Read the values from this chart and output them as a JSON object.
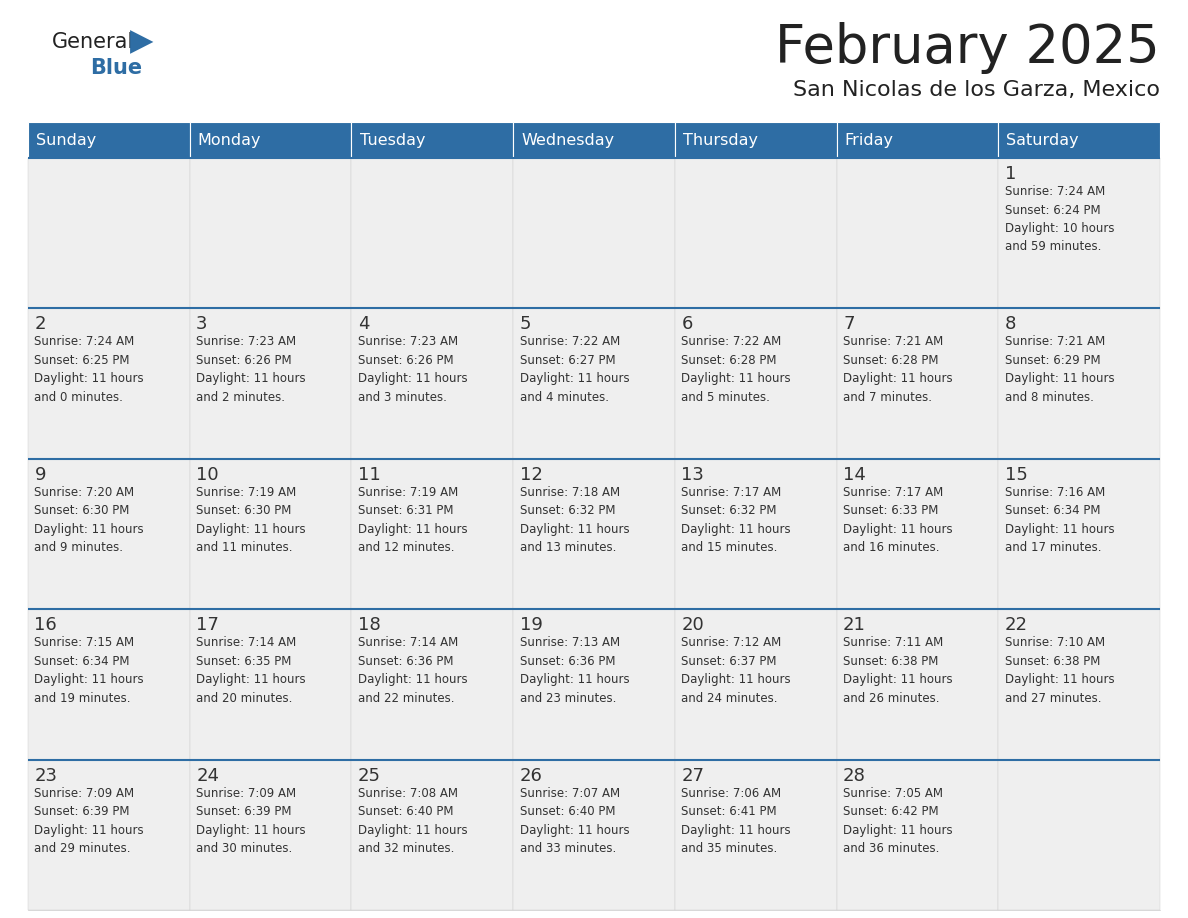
{
  "title": "February 2025",
  "subtitle": "San Nicolas de los Garza, Mexico",
  "days_of_week": [
    "Sunday",
    "Monday",
    "Tuesday",
    "Wednesday",
    "Thursday",
    "Friday",
    "Saturday"
  ],
  "header_bg": "#2E6DA4",
  "header_text": "#FFFFFF",
  "cell_bg": "#EFEFEF",
  "row_separator_color": "#2E6DA4",
  "day_number_color": "#333333",
  "text_color": "#333333",
  "grid_color": "#CCCCCC",
  "title_color": "#222222",
  "logo_general_color": "#222222",
  "logo_blue_color": "#2E6DA4",
  "calendar_data": [
    [
      {
        "day": null,
        "info": ""
      },
      {
        "day": null,
        "info": ""
      },
      {
        "day": null,
        "info": ""
      },
      {
        "day": null,
        "info": ""
      },
      {
        "day": null,
        "info": ""
      },
      {
        "day": null,
        "info": ""
      },
      {
        "day": 1,
        "info": "Sunrise: 7:24 AM\nSunset: 6:24 PM\nDaylight: 10 hours\nand 59 minutes."
      }
    ],
    [
      {
        "day": 2,
        "info": "Sunrise: 7:24 AM\nSunset: 6:25 PM\nDaylight: 11 hours\nand 0 minutes."
      },
      {
        "day": 3,
        "info": "Sunrise: 7:23 AM\nSunset: 6:26 PM\nDaylight: 11 hours\nand 2 minutes."
      },
      {
        "day": 4,
        "info": "Sunrise: 7:23 AM\nSunset: 6:26 PM\nDaylight: 11 hours\nand 3 minutes."
      },
      {
        "day": 5,
        "info": "Sunrise: 7:22 AM\nSunset: 6:27 PM\nDaylight: 11 hours\nand 4 minutes."
      },
      {
        "day": 6,
        "info": "Sunrise: 7:22 AM\nSunset: 6:28 PM\nDaylight: 11 hours\nand 5 minutes."
      },
      {
        "day": 7,
        "info": "Sunrise: 7:21 AM\nSunset: 6:28 PM\nDaylight: 11 hours\nand 7 minutes."
      },
      {
        "day": 8,
        "info": "Sunrise: 7:21 AM\nSunset: 6:29 PM\nDaylight: 11 hours\nand 8 minutes."
      }
    ],
    [
      {
        "day": 9,
        "info": "Sunrise: 7:20 AM\nSunset: 6:30 PM\nDaylight: 11 hours\nand 9 minutes."
      },
      {
        "day": 10,
        "info": "Sunrise: 7:19 AM\nSunset: 6:30 PM\nDaylight: 11 hours\nand 11 minutes."
      },
      {
        "day": 11,
        "info": "Sunrise: 7:19 AM\nSunset: 6:31 PM\nDaylight: 11 hours\nand 12 minutes."
      },
      {
        "day": 12,
        "info": "Sunrise: 7:18 AM\nSunset: 6:32 PM\nDaylight: 11 hours\nand 13 minutes."
      },
      {
        "day": 13,
        "info": "Sunrise: 7:17 AM\nSunset: 6:32 PM\nDaylight: 11 hours\nand 15 minutes."
      },
      {
        "day": 14,
        "info": "Sunrise: 7:17 AM\nSunset: 6:33 PM\nDaylight: 11 hours\nand 16 minutes."
      },
      {
        "day": 15,
        "info": "Sunrise: 7:16 AM\nSunset: 6:34 PM\nDaylight: 11 hours\nand 17 minutes."
      }
    ],
    [
      {
        "day": 16,
        "info": "Sunrise: 7:15 AM\nSunset: 6:34 PM\nDaylight: 11 hours\nand 19 minutes."
      },
      {
        "day": 17,
        "info": "Sunrise: 7:14 AM\nSunset: 6:35 PM\nDaylight: 11 hours\nand 20 minutes."
      },
      {
        "day": 18,
        "info": "Sunrise: 7:14 AM\nSunset: 6:36 PM\nDaylight: 11 hours\nand 22 minutes."
      },
      {
        "day": 19,
        "info": "Sunrise: 7:13 AM\nSunset: 6:36 PM\nDaylight: 11 hours\nand 23 minutes."
      },
      {
        "day": 20,
        "info": "Sunrise: 7:12 AM\nSunset: 6:37 PM\nDaylight: 11 hours\nand 24 minutes."
      },
      {
        "day": 21,
        "info": "Sunrise: 7:11 AM\nSunset: 6:38 PM\nDaylight: 11 hours\nand 26 minutes."
      },
      {
        "day": 22,
        "info": "Sunrise: 7:10 AM\nSunset: 6:38 PM\nDaylight: 11 hours\nand 27 minutes."
      }
    ],
    [
      {
        "day": 23,
        "info": "Sunrise: 7:09 AM\nSunset: 6:39 PM\nDaylight: 11 hours\nand 29 minutes."
      },
      {
        "day": 24,
        "info": "Sunrise: 7:09 AM\nSunset: 6:39 PM\nDaylight: 11 hours\nand 30 minutes."
      },
      {
        "day": 25,
        "info": "Sunrise: 7:08 AM\nSunset: 6:40 PM\nDaylight: 11 hours\nand 32 minutes."
      },
      {
        "day": 26,
        "info": "Sunrise: 7:07 AM\nSunset: 6:40 PM\nDaylight: 11 hours\nand 33 minutes."
      },
      {
        "day": 27,
        "info": "Sunrise: 7:06 AM\nSunset: 6:41 PM\nDaylight: 11 hours\nand 35 minutes."
      },
      {
        "day": 28,
        "info": "Sunrise: 7:05 AM\nSunset: 6:42 PM\nDaylight: 11 hours\nand 36 minutes."
      },
      {
        "day": null,
        "info": ""
      }
    ]
  ]
}
